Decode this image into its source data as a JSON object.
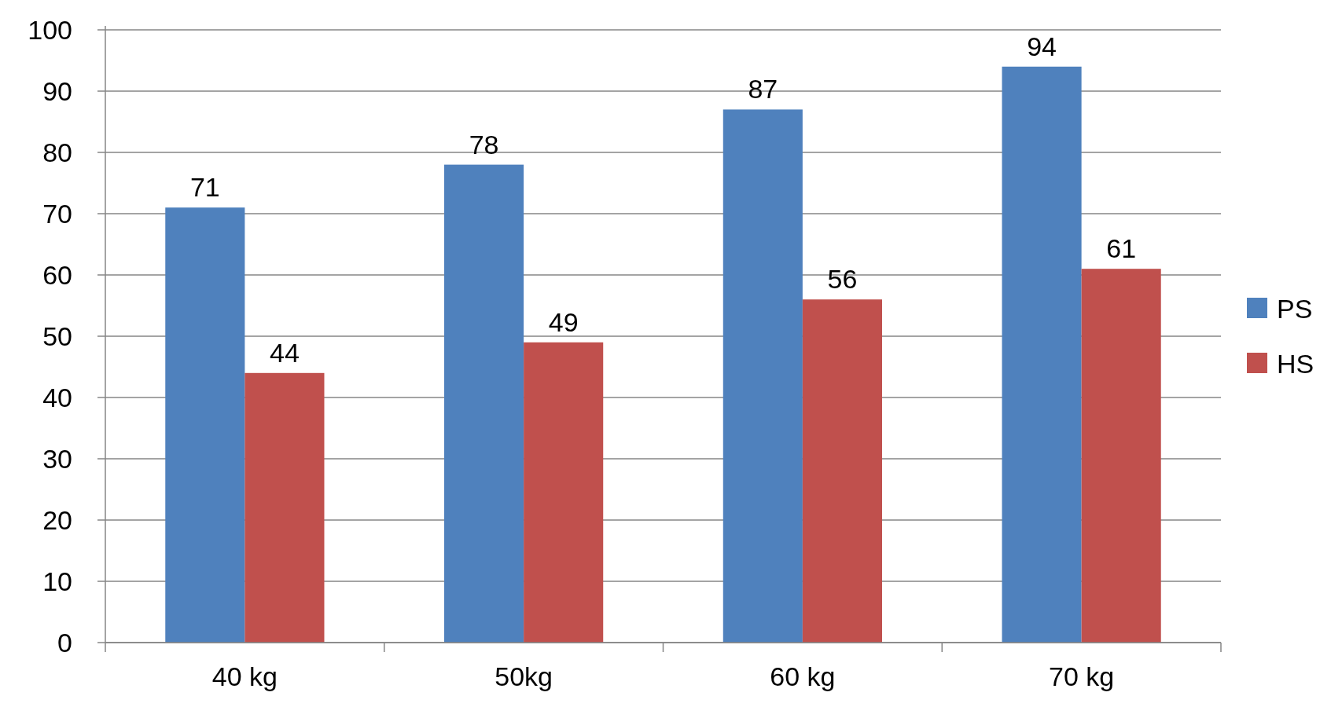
{
  "chart_data": {
    "type": "bar",
    "categories": [
      "40 kg",
      "50kg",
      "60 kg",
      "70 kg"
    ],
    "series": [
      {
        "name": "PS",
        "color": "#4f81bd",
        "values": [
          71,
          78,
          87,
          94
        ]
      },
      {
        "name": "HS",
        "color": "#c0504d",
        "values": [
          44,
          49,
          56,
          61
        ]
      }
    ],
    "ylim": [
      0,
      100
    ],
    "yticks": [
      0,
      10,
      20,
      30,
      40,
      50,
      60,
      70,
      80,
      90,
      100
    ],
    "grid": "y",
    "legend": "right",
    "data_labels": true
  }
}
